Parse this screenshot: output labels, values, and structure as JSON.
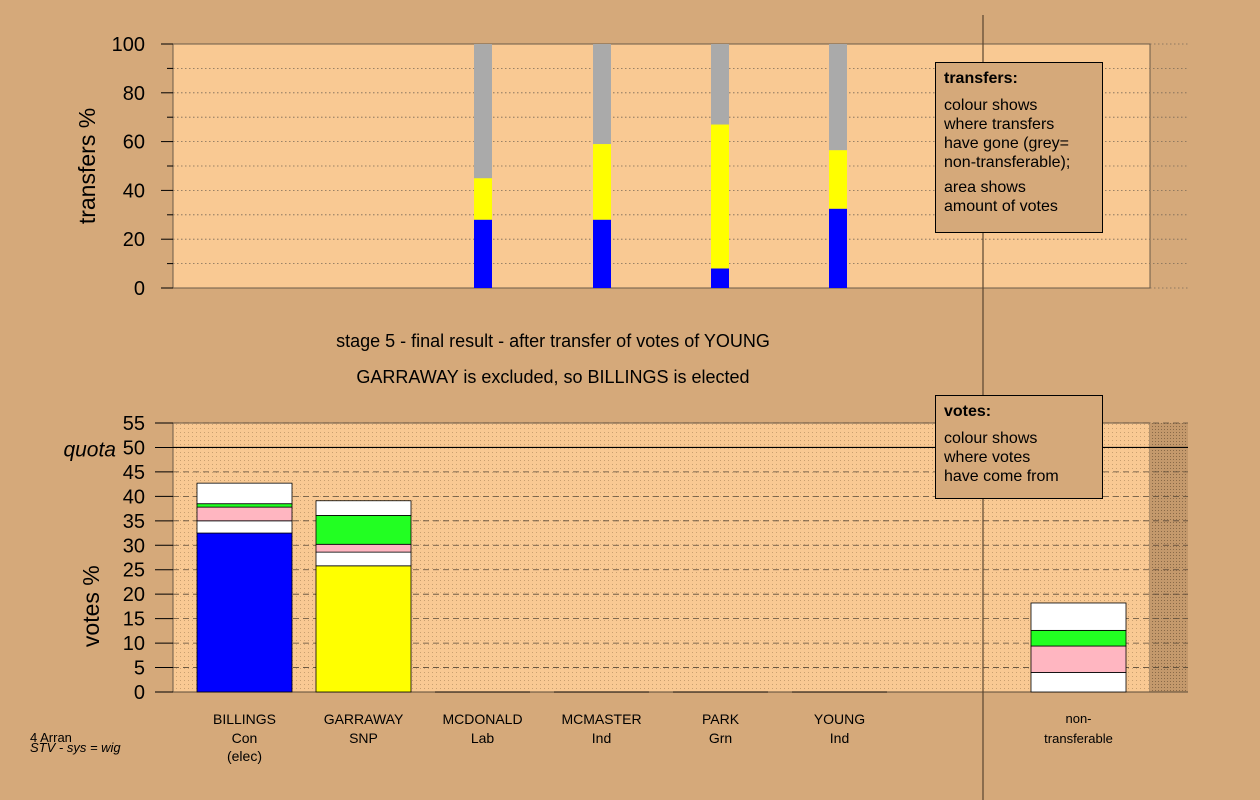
{
  "stage_title": "stage 5 - final result - after transfer of votes of YOUNG",
  "stage_subtitle": "GARRAWAY is excluded, so BILLINGS is elected",
  "transfers_legend": {
    "title": "transfers:",
    "lines": [
      "colour shows",
      "where transfers",
      "have gone (grey=",
      "non-transferable);",
      "area shows",
      "amount of votes"
    ]
  },
  "votes_legend": {
    "title": "votes:",
    "lines": [
      "colour shows",
      "where votes",
      "have come from"
    ]
  },
  "footnote": {
    "line1": "4 Arran",
    "line2": "STV - sys = wig"
  },
  "quota_label": "quota",
  "colors": {
    "background": "#d5a97a",
    "plot_area": "#f9c993",
    "blue": "#0000ff",
    "yellow": "#ffff00",
    "green": "#22ff22",
    "pink": "#ffb6c1",
    "white": "#ffffff",
    "grey": "#aaaaaa"
  },
  "chart_data": [
    {
      "type": "bar",
      "ylabel": "transfers %",
      "ylim": [
        0,
        100
      ],
      "yticks": [
        0,
        20,
        40,
        60,
        80,
        100
      ],
      "grid": true,
      "bars": [
        {
          "segments": [
            {
              "color": "blue",
              "value": 28
            },
            {
              "color": "yellow",
              "value": 17
            },
            {
              "color": "grey",
              "value": 55
            }
          ]
        },
        {
          "segments": [
            {
              "color": "blue",
              "value": 28
            },
            {
              "color": "yellow",
              "value": 31
            },
            {
              "color": "grey",
              "value": 41
            }
          ]
        },
        {
          "segments": [
            {
              "color": "blue",
              "value": 8
            },
            {
              "color": "yellow",
              "value": 59
            },
            {
              "color": "grey",
              "value": 33
            }
          ]
        },
        {
          "segments": [
            {
              "color": "blue",
              "value": 32.5
            },
            {
              "color": "yellow",
              "value": 24
            },
            {
              "color": "grey",
              "value": 43.5
            }
          ]
        }
      ]
    },
    {
      "type": "bar",
      "ylabel": "votes %",
      "ylim": [
        0,
        55
      ],
      "yticks": [
        0,
        5,
        10,
        15,
        20,
        25,
        30,
        35,
        40,
        45,
        50,
        55
      ],
      "quota": 50,
      "grid": true,
      "categories": [
        {
          "name": "BILLINGS",
          "party": "Con",
          "note": "(elec)"
        },
        {
          "name": "GARRAWAY",
          "party": "SNP",
          "note": ""
        },
        {
          "name": "MCDONALD",
          "party": "Lab",
          "note": ""
        },
        {
          "name": "MCMASTER",
          "party": "Ind",
          "note": ""
        },
        {
          "name": "PARK",
          "party": "Grn",
          "note": ""
        },
        {
          "name": "YOUNG",
          "party": "Ind",
          "note": ""
        },
        {
          "name": "non-",
          "party": "transferable",
          "note": ""
        }
      ],
      "stacks": [
        [
          {
            "color": "blue",
            "value": 32.5
          },
          {
            "color": "white",
            "value": 2.5
          },
          {
            "color": "pink",
            "value": 2.8
          },
          {
            "color": "green",
            "value": 0.7
          },
          {
            "color": "white",
            "value": 4.2
          }
        ],
        [
          {
            "color": "yellow",
            "value": 25.8
          },
          {
            "color": "white",
            "value": 2.8
          },
          {
            "color": "pink",
            "value": 1.6
          },
          {
            "color": "green",
            "value": 5.9
          },
          {
            "color": "white",
            "value": 3.0
          }
        ],
        [],
        [],
        [],
        [],
        [
          {
            "color": "white",
            "value": 4.0
          },
          {
            "color": "pink",
            "value": 5.4
          },
          {
            "color": "green",
            "value": 3.2
          },
          {
            "color": "white",
            "value": 5.6
          }
        ]
      ]
    }
  ]
}
